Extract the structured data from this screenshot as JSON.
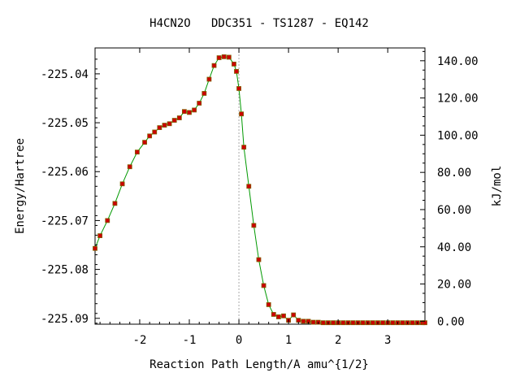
{
  "chart_data": {
    "type": "line",
    "title": "H4CN2O   DDC351 - TS1287 - EQ142",
    "xlabel": "Reaction Path Length/A amu^{1/2}",
    "ylabel": "Energy/Hartree",
    "y2label": "kJ/mol",
    "xlim": [
      -2.9,
      3.75
    ],
    "ylim": [
      -225.0912,
      -225.0347
    ],
    "y2lim": [
      -1.6,
      146.9
    ],
    "x_ticks": [
      -2,
      -1,
      0,
      1,
      2,
      3
    ],
    "x_tick_labels": [
      "-2",
      "-1",
      "0",
      "1",
      "2",
      "3"
    ],
    "y_ticks": [
      -225.04,
      -225.05,
      -225.06,
      -225.07,
      -225.08,
      -225.09
    ],
    "y_tick_labels": [
      "-225.04",
      "-225.05",
      "-225.06",
      "-225.07",
      "-225.08",
      "-225.09"
    ],
    "y2_ticks": [
      0,
      20,
      40,
      60,
      80,
      100,
      120,
      140
    ],
    "y2_tick_labels": [
      "0.00",
      "20.00",
      "40.00",
      "60.00",
      "80.00",
      "100.00",
      "120.00",
      "140.00"
    ],
    "ts_marker_x": 0,
    "grid": false,
    "line_color": "#009900",
    "marker_color": "#cc0000",
    "marker_edge_color": "#806000",
    "ts_line_color": "#aaaaaa",
    "series": [
      {
        "x": [
          -2.9,
          -2.8,
          -2.65,
          -2.5,
          -2.35,
          -2.2,
          -2.05,
          -1.9,
          -1.8,
          -1.7,
          -1.6,
          -1.5,
          -1.4,
          -1.3,
          -1.2,
          -1.1,
          -1.0,
          -0.9,
          -0.8,
          -0.7,
          -0.6,
          -0.5,
          -0.4,
          -0.3,
          -0.2,
          -0.1,
          -0.05,
          0.0,
          0.05,
          0.1,
          0.2,
          0.3,
          0.4,
          0.5,
          0.6,
          0.7,
          0.8,
          0.9,
          1.0,
          1.1,
          1.2,
          1.3,
          1.4,
          1.5,
          1.6,
          1.7,
          1.8,
          1.9,
          2.0,
          2.1,
          2.2,
          2.3,
          2.4,
          2.5,
          2.6,
          2.7,
          2.8,
          2.9,
          3.0,
          3.1,
          3.2,
          3.3,
          3.4,
          3.5,
          3.6,
          3.7,
          3.75
        ],
        "y": [
          -225.0757,
          -225.0731,
          -225.07,
          -225.0665,
          -225.0625,
          -225.059,
          -225.056,
          -225.054,
          -225.0527,
          -225.0519,
          -225.051,
          -225.0505,
          -225.0502,
          -225.0495,
          -225.049,
          -225.0477,
          -225.0479,
          -225.0474,
          -225.046,
          -225.044,
          -225.0411,
          -225.0383,
          -225.0367,
          -225.0365,
          -225.0366,
          -225.038,
          -225.0395,
          -225.043,
          -225.0482,
          -225.055,
          -225.063,
          -225.071,
          -225.078,
          -225.0833,
          -225.0872,
          -225.0892,
          -225.0897,
          -225.0895,
          -225.0904,
          -225.0893,
          -225.0904,
          -225.0906,
          -225.0906,
          -225.0908,
          -225.0908,
          -225.0909,
          -225.0909,
          -225.0909,
          -225.0909,
          -225.0909,
          -225.0909,
          -225.0909,
          -225.0909,
          -225.0909,
          -225.0909,
          -225.0909,
          -225.0909,
          -225.0909,
          -225.0909,
          -225.0909,
          -225.0909,
          -225.0909,
          -225.0909,
          -225.0909,
          -225.0909,
          -225.0909,
          -225.0909
        ]
      }
    ]
  }
}
